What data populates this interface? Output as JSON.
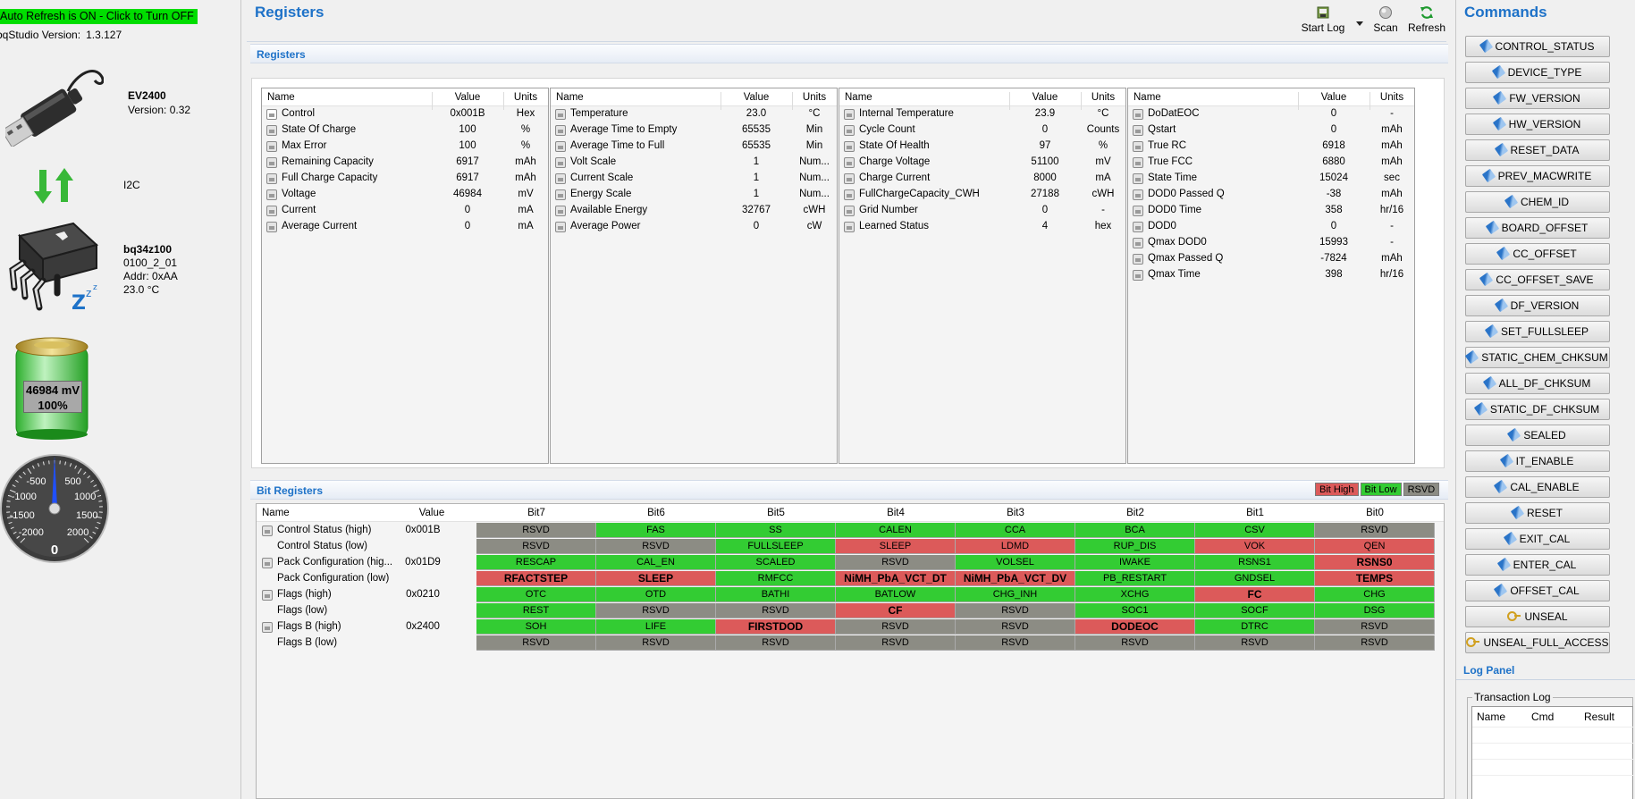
{
  "left": {
    "autorefresh": "Auto Refresh is ON - Click to Turn OFF",
    "version_label": "bqStudio Version:",
    "version_value": "1.3.127",
    "adapter": {
      "name": "EV2400",
      "version": "Version: 0.32"
    },
    "interface": "I2C",
    "device": {
      "name": "bq34z100",
      "fw": "0100_2_01",
      "addr": "Addr: 0xAA",
      "temp": "23.0 °C"
    },
    "battery": {
      "voltage": "46984 mV",
      "percent": "100%",
      "level": 1.0
    },
    "gauge": {
      "ticks": [
        "-2000",
        "-1500",
        "-1000",
        "-500",
        "500",
        "1000",
        "1500",
        "2000"
      ],
      "value": "0"
    }
  },
  "main": {
    "title": "Registers",
    "toolbar": {
      "start_log": "Start Log",
      "scan": "Scan",
      "refresh": "Refresh"
    },
    "registers_section": "Registers",
    "bit_section": "Bit Registers",
    "legend": {
      "high": "Bit High",
      "low": "Bit Low",
      "rsvd": "RSVD",
      "colors": {
        "high": "#dc5a5a",
        "low": "#33cc33",
        "rsvd": "#8c8c84"
      }
    }
  },
  "reg_headers": {
    "name": "Name",
    "value": "Value",
    "units": "Units"
  },
  "reg_tables": [
    [
      {
        "name": "Control",
        "value": "0x001B",
        "units": "Hex",
        "editable": true
      },
      {
        "name": "State Of Charge",
        "value": "100",
        "units": "%"
      },
      {
        "name": "Max Error",
        "value": "100",
        "units": "%"
      },
      {
        "name": "Remaining Capacity",
        "value": "6917",
        "units": "mAh"
      },
      {
        "name": "Full Charge Capacity",
        "value": "6917",
        "units": "mAh"
      },
      {
        "name": "Voltage",
        "value": "46984",
        "units": "mV"
      },
      {
        "name": "Current",
        "value": "0",
        "units": "mA"
      },
      {
        "name": "Average Current",
        "value": "0",
        "units": "mA"
      }
    ],
    [
      {
        "name": "Temperature",
        "value": "23.0",
        "units": "°C"
      },
      {
        "name": "Average Time to Empty",
        "value": "65535",
        "units": "Min"
      },
      {
        "name": "Average Time to Full",
        "value": "65535",
        "units": "Min"
      },
      {
        "name": "Volt Scale",
        "value": "1",
        "units": "Num..."
      },
      {
        "name": "Current Scale",
        "value": "1",
        "units": "Num..."
      },
      {
        "name": "Energy Scale",
        "value": "1",
        "units": "Num..."
      },
      {
        "name": "Available Energy",
        "value": "32767",
        "units": "cWH"
      },
      {
        "name": "Average Power",
        "value": "0",
        "units": "cW"
      }
    ],
    [
      {
        "name": "Internal Temperature",
        "value": "23.9",
        "units": "°C"
      },
      {
        "name": "Cycle Count",
        "value": "0",
        "units": "Counts"
      },
      {
        "name": "State Of Health",
        "value": "97",
        "units": "%"
      },
      {
        "name": "Charge Voltage",
        "value": "51100",
        "units": "mV"
      },
      {
        "name": "Charge Current",
        "value": "8000",
        "units": "mA"
      },
      {
        "name": "FullChargeCapacity_CWH",
        "value": "27188",
        "units": "cWH"
      },
      {
        "name": "Grid Number",
        "value": "0",
        "units": "-"
      },
      {
        "name": "Learned Status",
        "value": "4",
        "units": "hex"
      }
    ],
    [
      {
        "name": "DoDatEOC",
        "value": "0",
        "units": "-"
      },
      {
        "name": "Qstart",
        "value": "0",
        "units": "mAh"
      },
      {
        "name": "True RC",
        "value": "6918",
        "units": "mAh"
      },
      {
        "name": "True FCC",
        "value": "6880",
        "units": "mAh"
      },
      {
        "name": "State Time",
        "value": "15024",
        "units": "sec"
      },
      {
        "name": "DOD0 Passed Q",
        "value": "-38",
        "units": "mAh"
      },
      {
        "name": "DOD0 Time",
        "value": "358",
        "units": "hr/16"
      },
      {
        "name": "DOD0",
        "value": "0",
        "units": "-"
      },
      {
        "name": "Qmax DOD0",
        "value": "15993",
        "units": "-"
      },
      {
        "name": "Qmax Passed Q",
        "value": "-7824",
        "units": "mAh"
      },
      {
        "name": "Qmax Time",
        "value": "398",
        "units": "hr/16"
      }
    ]
  ],
  "bit_headers": [
    "Name",
    "Value",
    "Bit7",
    "Bit6",
    "Bit5",
    "Bit4",
    "Bit3",
    "Bit2",
    "Bit1",
    "Bit0"
  ],
  "bit_rows": [
    {
      "name": "Control Status (high)",
      "value": "0x001B",
      "icon": true,
      "bits": [
        [
          "RSVD",
          "r"
        ],
        [
          "FAS",
          "l"
        ],
        [
          "SS",
          "l"
        ],
        [
          "CALEN",
          "l"
        ],
        [
          "CCA",
          "l"
        ],
        [
          "BCA",
          "l"
        ],
        [
          "CSV",
          "l"
        ],
        [
          "RSVD",
          "r"
        ]
      ]
    },
    {
      "name": "Control Status (low)",
      "value": "",
      "icon": false,
      "bits": [
        [
          "RSVD",
          "r"
        ],
        [
          "RSVD",
          "r"
        ],
        [
          "FULLSLEEP",
          "l"
        ],
        [
          "SLEEP",
          "h"
        ],
        [
          "LDMD",
          "h"
        ],
        [
          "RUP_DIS",
          "l"
        ],
        [
          "VOK",
          "h"
        ],
        [
          "QEN",
          "h"
        ]
      ]
    },
    {
      "name": "Pack Configuration (hig...",
      "value": "0x01D9",
      "icon": true,
      "bits": [
        [
          "RESCAP",
          "l"
        ],
        [
          "CAL_EN",
          "l"
        ],
        [
          "SCALED",
          "l"
        ],
        [
          "RSVD",
          "r"
        ],
        [
          "VOLSEL",
          "l"
        ],
        [
          "IWAKE",
          "l"
        ],
        [
          "RSNS1",
          "l"
        ],
        [
          "RSNS0",
          "hb"
        ]
      ]
    },
    {
      "name": "Pack Configuration (low)",
      "value": "",
      "icon": false,
      "bits": [
        [
          "RFACTSTEP",
          "hb"
        ],
        [
          "SLEEP",
          "hb"
        ],
        [
          "RMFCC",
          "l"
        ],
        [
          "NiMH_PbA_VCT_DT",
          "hb"
        ],
        [
          "NiMH_PbA_VCT_DV",
          "hb"
        ],
        [
          "PB_RESTART",
          "l"
        ],
        [
          "GNDSEL",
          "l"
        ],
        [
          "TEMPS",
          "hb"
        ]
      ]
    },
    {
      "name": "Flags (high)",
      "value": "0x0210",
      "icon": true,
      "bits": [
        [
          "OTC",
          "l"
        ],
        [
          "OTD",
          "l"
        ],
        [
          "BATHI",
          "l"
        ],
        [
          "BATLOW",
          "l"
        ],
        [
          "CHG_INH",
          "l"
        ],
        [
          "XCHG",
          "l"
        ],
        [
          "FC",
          "hb"
        ],
        [
          "CHG",
          "l"
        ]
      ]
    },
    {
      "name": "Flags (low)",
      "value": "",
      "icon": false,
      "bits": [
        [
          "REST",
          "l"
        ],
        [
          "RSVD",
          "r"
        ],
        [
          "RSVD",
          "r"
        ],
        [
          "CF",
          "hb"
        ],
        [
          "RSVD",
          "r"
        ],
        [
          "SOC1",
          "l"
        ],
        [
          "SOCF",
          "l"
        ],
        [
          "DSG",
          "l"
        ]
      ]
    },
    {
      "name": "Flags B (high)",
      "value": "0x2400",
      "icon": true,
      "bits": [
        [
          "SOH",
          "l"
        ],
        [
          "LIFE",
          "l"
        ],
        [
          "FIRSTDOD",
          "hb"
        ],
        [
          "RSVD",
          "r"
        ],
        [
          "RSVD",
          "r"
        ],
        [
          "DODEOC",
          "hb"
        ],
        [
          "DTRC",
          "l"
        ],
        [
          "RSVD",
          "r"
        ]
      ]
    },
    {
      "name": "Flags B (low)",
      "value": "",
      "icon": false,
      "bits": [
        [
          "RSVD",
          "r"
        ],
        [
          "RSVD",
          "r"
        ],
        [
          "RSVD",
          "r"
        ],
        [
          "RSVD",
          "r"
        ],
        [
          "RSVD",
          "r"
        ],
        [
          "RSVD",
          "r"
        ],
        [
          "RSVD",
          "r"
        ],
        [
          "RSVD",
          "r"
        ]
      ]
    }
  ],
  "commands": {
    "title": "Commands",
    "items": [
      "CONTROL_STATUS",
      "DEVICE_TYPE",
      "FW_VERSION",
      "HW_VERSION",
      "RESET_DATA",
      "PREV_MACWRITE",
      "CHEM_ID",
      "BOARD_OFFSET",
      "CC_OFFSET",
      "CC_OFFSET_SAVE",
      "DF_VERSION",
      "SET_FULLSLEEP",
      "STATIC_CHEM_CHKSUM",
      "ALL_DF_CHKSUM",
      "STATIC_DF_CHKSUM",
      "SEALED",
      "IT_ENABLE",
      "CAL_ENABLE",
      "RESET",
      "EXIT_CAL",
      "ENTER_CAL",
      "OFFSET_CAL",
      "UNSEAL",
      "UNSEAL_FULL_ACCESS"
    ],
    "key_items": [
      "UNSEAL",
      "UNSEAL_FULL_ACCESS"
    ]
  },
  "log": {
    "title": "Log Panel",
    "group": "Transaction Log",
    "columns": [
      "Name",
      "Cmd",
      "Result"
    ]
  }
}
